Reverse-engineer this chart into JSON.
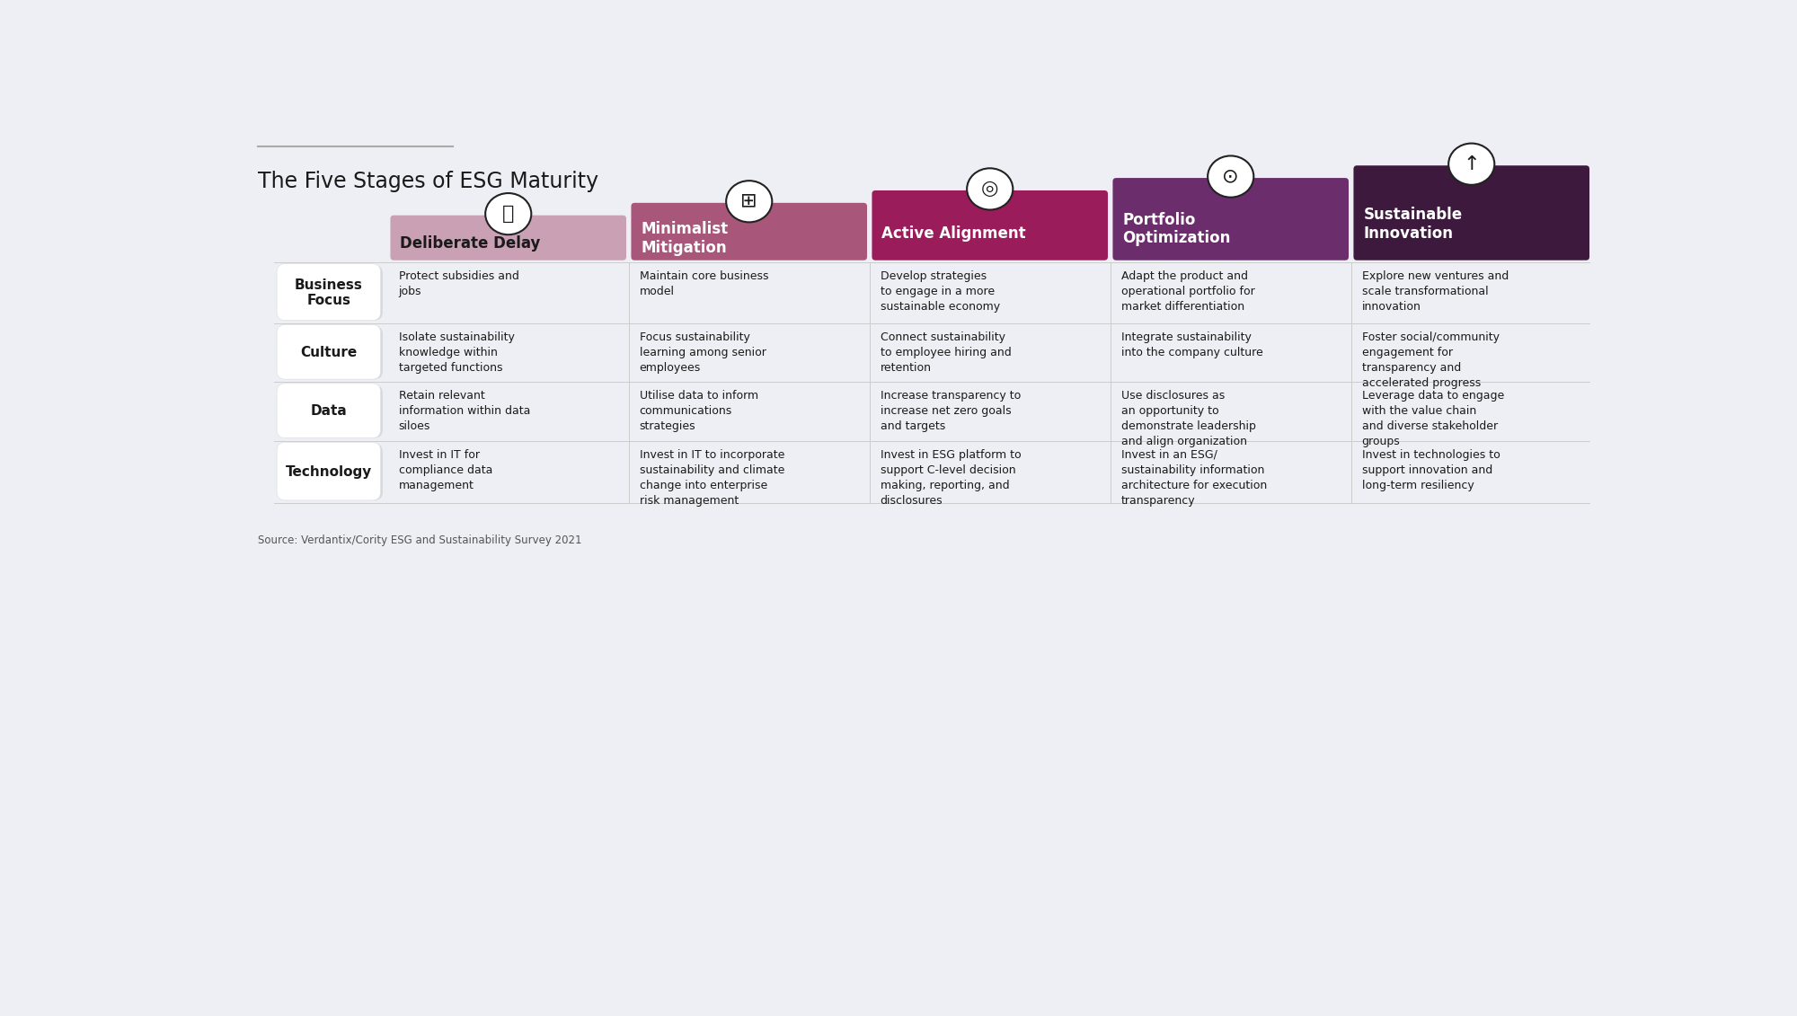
{
  "title": "The Five Stages of ESG Maturity",
  "subtitle": "Source: Verdantix/Cority ESG and Sustainability Survey 2021",
  "background_color": "#eeeff4",
  "stages": [
    {
      "name": "Deliberate Delay",
      "color": "#c9a0b4",
      "text_color": "#1a1a1a",
      "stair": 0
    },
    {
      "name": "Minimalist\nMitigation",
      "color": "#a8567a",
      "text_color": "#ffffff",
      "stair": 1
    },
    {
      "name": "Active Alignment",
      "color": "#9b1c5a",
      "text_color": "#ffffff",
      "stair": 2
    },
    {
      "name": "Portfolio\nOptimization",
      "color": "#6b2d6b",
      "text_color": "#ffffff",
      "stair": 3
    },
    {
      "name": "Sustainable\nInnovation",
      "color": "#3d1a3d",
      "text_color": "#ffffff",
      "stair": 4
    }
  ],
  "row_labels": [
    "Business\nFocus",
    "Culture",
    "Data",
    "Technology"
  ],
  "row_label_color": "#1a1a1a",
  "cell_data": [
    [
      "Protect subsidies and\njobs",
      "Maintain core business\nmodel",
      "Develop strategies\nto engage in a more\nsustainable economy",
      "Adapt the product and\noperational portfolio for\nmarket differentiation",
      "Explore new ventures and\nscale transformational\ninnovation"
    ],
    [
      "Isolate sustainability\nknowledge within\ntargeted functions",
      "Focus sustainability\nlearning among senior\nemployees",
      "Connect sustainability\nto employee hiring and\nretention",
      "Integrate sustainability\ninto the company culture",
      "Foster social/community\nengagement for\ntransparency and\naccelerated progress"
    ],
    [
      "Retain relevant\ninformation within data\nsiloes",
      "Utilise data to inform\ncommunications\nstrategies",
      "Increase transparency to\nincrease net zero goals\nand targets",
      "Use disclosures as\nan opportunity to\ndemonstrate leadership\nand align organization",
      "Leverage data to engage\nwith the value chain\nand diverse stakeholder\ngroups"
    ],
    [
      "Invest in IT for\ncompliance data\nmanagement",
      "Invest in IT to incorporate\nsustainability and climate\nchange into enterprise\nrisk management",
      "Invest in ESG platform to\nsupport C-level decision\nmaking, reporting, and\ndisclosures",
      "Invest in an ESG/\nsustainability information\narchitecture for execution\ntransparency",
      "Invest in technologies to\nsupport innovation and\nlong-term resiliency"
    ]
  ],
  "icon_symbols": [
    "⌛",
    "💼",
    "🎯",
    "💡",
    "🚀"
  ]
}
